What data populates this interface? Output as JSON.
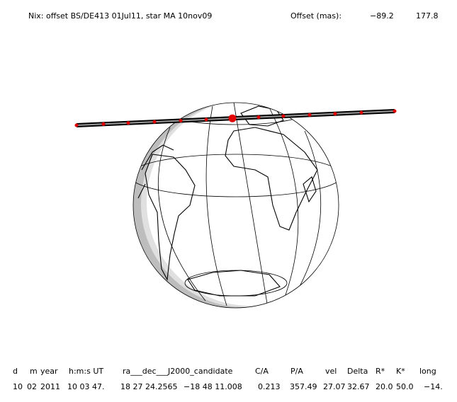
{
  "header": {
    "title": "Nix: offset BS/DE413 01Jul11, star MA 10nov09",
    "offset_label": "Offset (mas):",
    "offset_values": [
      "−89.2",
      "177.8"
    ]
  },
  "table": {
    "columns": [
      "d",
      "m",
      "year",
      "h:m:s UT",
      "ra___dec___J2000_candidate",
      "C/A",
      "P/A",
      "vel",
      "Delta",
      "R*",
      "K*",
      "long"
    ],
    "rows": [
      [
        "10",
        "02",
        "2011",
        "10 03 47.",
        "18 27 24.2565",
        "−18 48 11.008",
        "0.213",
        "357.49",
        "27.07",
        "32.67",
        "20.0",
        "50.0",
        "−14."
      ]
    ]
  }
}
